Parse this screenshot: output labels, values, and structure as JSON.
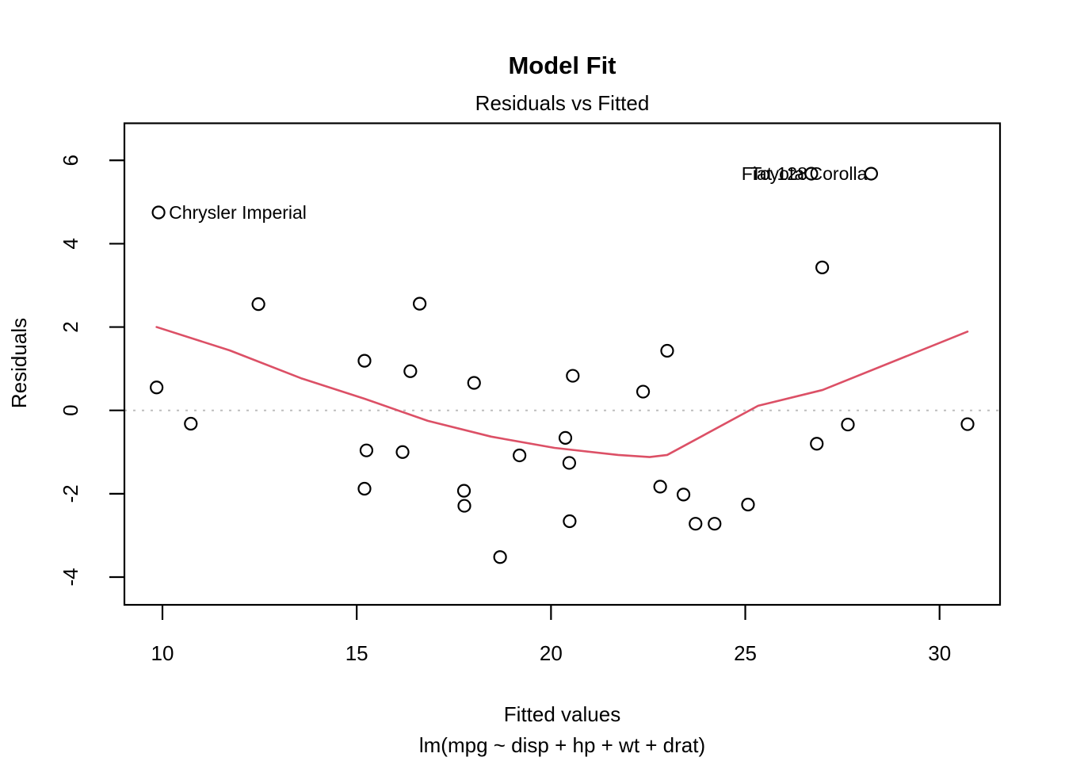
{
  "header": {
    "title": "Model Fit",
    "subtitle": "Residuals vs Fitted"
  },
  "colors": {
    "foreground": "#000000",
    "smooth_line": "#DC5066",
    "zero_line": "#BEBEBE",
    "background": "#FFFFFF"
  },
  "chart_data": {
    "type": "scatter",
    "title": "Model Fit",
    "subtitle": "Residuals vs Fitted",
    "xlabel": "Fitted values",
    "xlabel_sub": "lm(mpg ~ disp + hp + wt + drat)",
    "ylabel": "Residuals",
    "xlim": [
      9.02,
      31.56
    ],
    "ylim": [
      -4.67,
      6.89
    ],
    "x_ticks": [
      10,
      15,
      20,
      25,
      30
    ],
    "y_ticks": [
      6,
      4,
      2,
      0,
      -2,
      -4
    ],
    "grid": "off",
    "zero_reference_line": 0,
    "points": [
      {
        "fitted": 9.85,
        "residual": 0.55
      },
      {
        "fitted": 9.9,
        "residual": 4.75,
        "label": "Chrysler Imperial",
        "label_side": "right"
      },
      {
        "fitted": 10.73,
        "residual": -0.32
      },
      {
        "fitted": 12.47,
        "residual": 2.55
      },
      {
        "fitted": 15.2,
        "residual": 1.19
      },
      {
        "fitted": 15.25,
        "residual": -0.96
      },
      {
        "fitted": 15.2,
        "residual": -1.88
      },
      {
        "fitted": 16.18,
        "residual": -1.0
      },
      {
        "fitted": 16.38,
        "residual": 0.94
      },
      {
        "fitted": 16.62,
        "residual": 2.56
      },
      {
        "fitted": 17.76,
        "residual": -1.93
      },
      {
        "fitted": 17.77,
        "residual": -2.29
      },
      {
        "fitted": 18.02,
        "residual": 0.66
      },
      {
        "fitted": 18.69,
        "residual": -3.52
      },
      {
        "fitted": 19.19,
        "residual": -1.08
      },
      {
        "fitted": 20.37,
        "residual": -0.66
      },
      {
        "fitted": 20.47,
        "residual": -1.26
      },
      {
        "fitted": 20.48,
        "residual": -2.66
      },
      {
        "fitted": 20.56,
        "residual": 0.83
      },
      {
        "fitted": 22.37,
        "residual": 0.45
      },
      {
        "fitted": 22.81,
        "residual": -1.83
      },
      {
        "fitted": 22.99,
        "residual": 1.43
      },
      {
        "fitted": 23.41,
        "residual": -2.02
      },
      {
        "fitted": 23.72,
        "residual": -2.72
      },
      {
        "fitted": 24.21,
        "residual": -2.72
      },
      {
        "fitted": 25.07,
        "residual": -2.26
      },
      {
        "fitted": 26.7,
        "residual": 5.68,
        "label": "Fiat 128",
        "label_side": "left"
      },
      {
        "fitted": 26.84,
        "residual": -0.8
      },
      {
        "fitted": 26.98,
        "residual": 3.43
      },
      {
        "fitted": 27.64,
        "residual": -0.34
      },
      {
        "fitted": 28.24,
        "residual": 5.68,
        "label": "Toyota Corolla",
        "label_side": "left"
      },
      {
        "fitted": 30.72,
        "residual": -0.33
      }
    ],
    "smooth_line": [
      [
        9.85,
        2.0
      ],
      [
        11.73,
        1.44
      ],
      [
        13.57,
        0.77
      ],
      [
        15.2,
        0.28
      ],
      [
        16.83,
        -0.25
      ],
      [
        18.46,
        -0.63
      ],
      [
        20.09,
        -0.9
      ],
      [
        21.73,
        -1.07
      ],
      [
        22.54,
        -1.12
      ],
      [
        22.99,
        -1.07
      ],
      [
        25.33,
        0.11
      ],
      [
        26.99,
        0.49
      ],
      [
        30.72,
        1.89
      ]
    ],
    "legend": "none"
  }
}
